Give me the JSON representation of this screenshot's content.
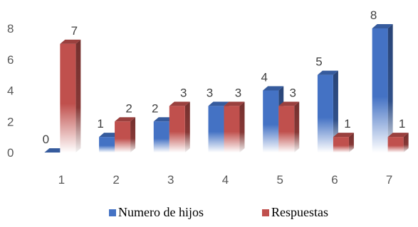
{
  "chart_data": {
    "type": "bar",
    "categories": [
      "1",
      "2",
      "3",
      "4",
      "5",
      "6",
      "7"
    ],
    "series": [
      {
        "name": "Numero de hijos",
        "values": [
          0,
          1,
          2,
          3,
          4,
          5,
          8
        ],
        "color": "#4472C4"
      },
      {
        "name": "Respuestas",
        "values": [
          7,
          2,
          3,
          3,
          3,
          1,
          1
        ],
        "color": "#C0504D"
      }
    ],
    "yticks": [
      "0",
      "2",
      "4",
      "6",
      "8"
    ],
    "ylim": [
      0,
      8
    ],
    "title": "",
    "xlabel": "",
    "ylabel": "",
    "legend_position": "bottom",
    "grid": false,
    "style": "3d-column"
  }
}
